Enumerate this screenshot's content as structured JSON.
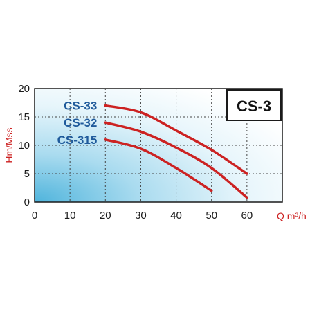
{
  "chart_data": {
    "type": "line",
    "title": "CS-3",
    "xlabel": "Q m³/h",
    "ylabel": "Hm/Mss",
    "xlim": [
      0,
      70
    ],
    "ylim": [
      0,
      20
    ],
    "xticks": [
      "0",
      "10",
      "20",
      "30",
      "40",
      "50",
      "60"
    ],
    "yticks": [
      "0",
      "5",
      "10",
      "15",
      "20"
    ],
    "grid": true,
    "series": [
      {
        "name": "CS-33",
        "x": [
          20,
          30,
          40,
          50,
          60
        ],
        "y": [
          17,
          15.8,
          12.6,
          9.2,
          5
        ]
      },
      {
        "name": "CS-32",
        "x": [
          20,
          30,
          40,
          50,
          60
        ],
        "y": [
          14,
          12.4,
          9.6,
          6,
          0.8
        ]
      },
      {
        "name": "CS-315",
        "x": [
          20,
          30,
          40,
          50
        ],
        "y": [
          11,
          9.4,
          6,
          2
        ]
      }
    ],
    "colors": {
      "curve": "#cc2222",
      "series_label": "#1f5a9b",
      "axis_label": "#cc1f1f",
      "grid": "#444444"
    }
  }
}
